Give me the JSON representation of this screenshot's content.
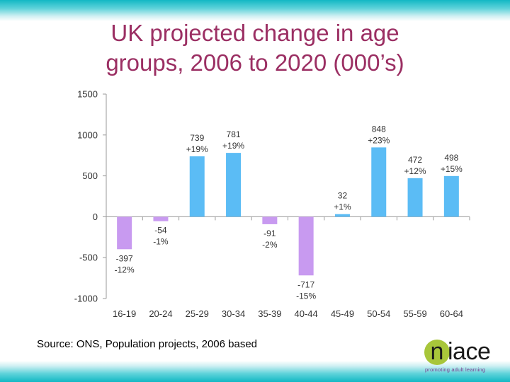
{
  "slide": {
    "title_line1": "UK projected change in age",
    "title_line2": "groups, 2006 to 2020 (000’s)",
    "source": "Source: ONS, Population projects, 2006 based"
  },
  "logo": {
    "letter": "n",
    "rest": "iace",
    "tagline": "promoting adult learning"
  },
  "colors": {
    "positive_bar": "#5bbcf5",
    "negative_bar": "#c89af0",
    "title": "#9b2f63",
    "band": "#12b8c4",
    "logo_circle": "#a8c63a"
  },
  "chart_data": {
    "type": "bar",
    "categories": [
      "16-19",
      "20-24",
      "25-29",
      "30-34",
      "35-39",
      "40-44",
      "45-49",
      "50-54",
      "55-59",
      "60-64"
    ],
    "values": [
      -397,
      -54,
      739,
      781,
      -91,
      -717,
      32,
      848,
      472,
      498
    ],
    "value_labels": [
      "-397",
      "-54",
      "739",
      "781",
      "-91",
      "-717",
      "32",
      "848",
      "472",
      "498"
    ],
    "percent_labels": [
      "-12%",
      "-1%",
      "+19%",
      "+19%",
      "-2%",
      "-15%",
      "+1%",
      "+23%",
      "+12%",
      "+15%"
    ],
    "ylim": [
      -1000,
      1500
    ],
    "yticks": [
      -1000,
      -500,
      0,
      500,
      1000,
      1500
    ],
    "ytick_labels": [
      "-1000",
      "-500",
      "0",
      "500",
      "1000",
      "1500"
    ],
    "title": "",
    "xlabel": "",
    "ylabel": "",
    "grid": false
  }
}
